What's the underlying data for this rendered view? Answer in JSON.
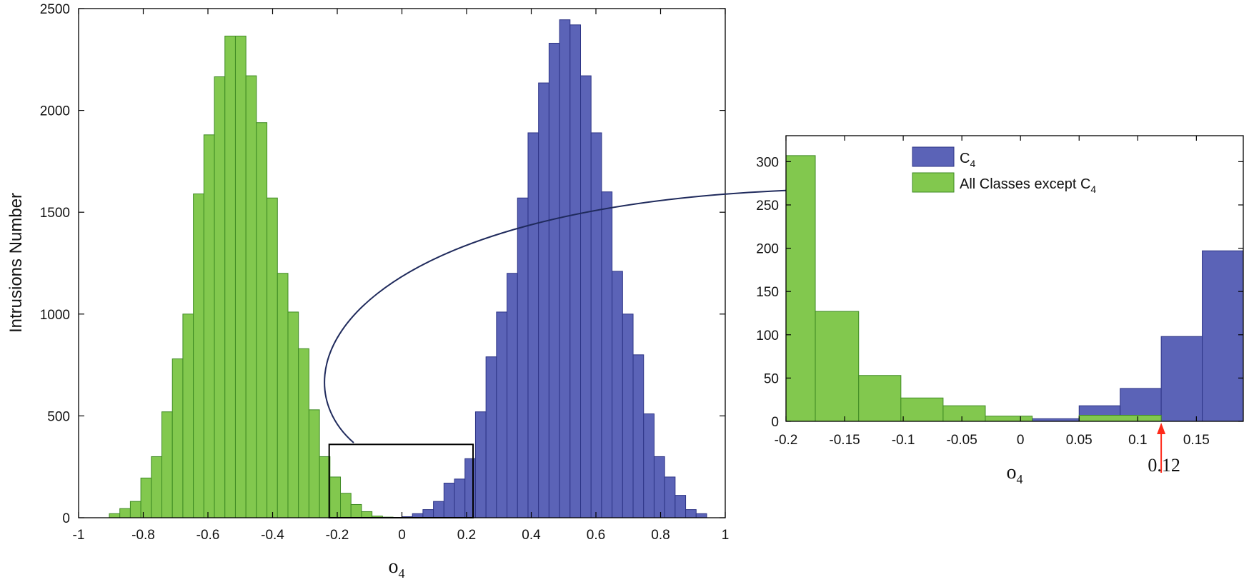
{
  "colors": {
    "blue": "#5b63b7",
    "blue_edge": "#2d3486",
    "green": "#82c84e",
    "green_edge": "#3e8a23",
    "axis": "#000000",
    "connector": "#1f2a5c",
    "marker": "#ff2a1a"
  },
  "chart_data": [
    {
      "name": "main",
      "type": "bar",
      "title": "",
      "xlabel_main": "o",
      "xlabel_sub": "4",
      "ylabel": "Intrusions Number",
      "xlim": [
        -1,
        1
      ],
      "ylim": [
        0,
        2500
      ],
      "xticks": [
        -1,
        -0.8,
        -0.6,
        -0.4,
        -0.2,
        0,
        0.2,
        0.4,
        0.6,
        0.8,
        1
      ],
      "xtick_labels": [
        "-1",
        "-0.8",
        "-0.6",
        "-0.4",
        "-0.2",
        "0",
        "0.2",
        "0.4",
        "0.6",
        "0.8",
        "1"
      ],
      "yticks": [
        0,
        500,
        1000,
        1500,
        2000,
        2500
      ],
      "ytick_labels": [
        "0",
        "500",
        "1000",
        "1500",
        "2000",
        "2500"
      ],
      "bin_width": 0.0325,
      "series": [
        {
          "name": "All Classes except C4",
          "color": "green",
          "bin_start": -0.905,
          "values": [
            20,
            45,
            80,
            195,
            300,
            520,
            780,
            1000,
            1590,
            1880,
            2165,
            2365,
            2365,
            2170,
            1940,
            1570,
            1200,
            1010,
            830,
            530,
            300,
            200,
            120,
            65,
            30,
            8,
            3,
            0,
            2,
            5
          ]
        },
        {
          "name": "C4",
          "color": "blue",
          "bin_start": 0.0,
          "values": [
            5,
            20,
            40,
            80,
            170,
            190,
            290,
            520,
            790,
            1010,
            1200,
            1570,
            1890,
            2135,
            2330,
            2445,
            2420,
            2170,
            1890,
            1600,
            1210,
            1000,
            800,
            510,
            300,
            200,
            110,
            40,
            20
          ]
        }
      ],
      "zoom_box": {
        "x": [
          -0.225,
          0.22
        ],
        "y": [
          0,
          360
        ]
      }
    },
    {
      "name": "inset",
      "type": "bar",
      "title": "",
      "xlabel_main": "o",
      "xlabel_sub": "4",
      "ylabel": "",
      "xlim": [
        -0.2,
        0.19
      ],
      "ylim": [
        0,
        330
      ],
      "xticks": [
        -0.2,
        -0.15,
        -0.1,
        -0.05,
        0,
        0.05,
        0.1,
        0.15
      ],
      "xtick_labels": [
        "-0.2",
        "-0.15",
        "-0.1",
        "-0.05",
        "0",
        "0.05",
        "0.1",
        "0.15"
      ],
      "yticks": [
        0,
        50,
        100,
        150,
        200,
        250,
        300
      ],
      "ytick_labels": [
        "0",
        "50",
        "100",
        "150",
        "200",
        "250",
        "300"
      ],
      "series": [
        {
          "name": "C4",
          "color": "blue",
          "bins": [
            {
              "x0": 0.01,
              "x1": 0.05,
              "value": 3
            },
            {
              "x0": 0.05,
              "x1": 0.085,
              "value": 18
            },
            {
              "x0": 0.085,
              "x1": 0.12,
              "value": 38
            },
            {
              "x0": 0.12,
              "x1": 0.155,
              "value": 98
            },
            {
              "x0": 0.155,
              "x1": 0.19,
              "value": 197
            }
          ]
        },
        {
          "name": "All Classes except C4",
          "color": "green",
          "bins": [
            {
              "x0": -0.2,
              "x1": -0.175,
              "value": 307
            },
            {
              "x0": -0.175,
              "x1": -0.138,
              "value": 127
            },
            {
              "x0": -0.138,
              "x1": -0.102,
              "value": 53
            },
            {
              "x0": -0.102,
              "x1": -0.066,
              "value": 27
            },
            {
              "x0": -0.066,
              "x1": -0.03,
              "value": 18
            },
            {
              "x0": -0.03,
              "x1": 0.01,
              "value": 6
            },
            {
              "x0": 0.05,
              "x1": 0.12,
              "value": 7
            }
          ]
        }
      ],
      "legend": {
        "placement": "top-right",
        "items": [
          {
            "color": "blue",
            "label_main": "C",
            "label_sub": "4"
          },
          {
            "color": "green",
            "label_main": "All Classes except C",
            "label_sub": "4"
          }
        ]
      },
      "threshold": {
        "value": 0.12,
        "label": "0.12"
      }
    }
  ]
}
